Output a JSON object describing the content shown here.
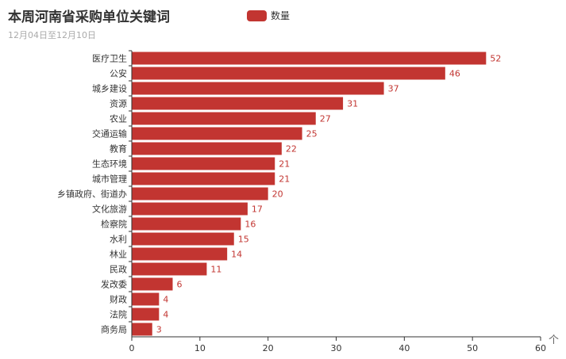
{
  "header": {
    "title": "本周河南省采购单位关键词",
    "subtitle": "12月04日至12月10日"
  },
  "legend": {
    "label": "数量",
    "color": "#c23531"
  },
  "toolbox": {
    "icon": "arrow-up-icon",
    "glyph": "个"
  },
  "chart_data": {
    "type": "bar",
    "orientation": "horizontal",
    "title": "本周河南省采购单位关键词",
    "subtitle": "12月04日至12月10日",
    "categories": [
      "医疗卫生",
      "公安",
      "城乡建设",
      "资源",
      "农业",
      "交通运输",
      "教育",
      "生态环境",
      "城市管理",
      "乡镇政府、街道办",
      "文化旅游",
      "检察院",
      "水利",
      "林业",
      "民政",
      "发改委",
      "财政",
      "法院",
      "商务局"
    ],
    "series": [
      {
        "name": "数量",
        "values": [
          52,
          46,
          37,
          31,
          27,
          25,
          22,
          21,
          21,
          20,
          17,
          16,
          15,
          14,
          11,
          6,
          4,
          4,
          3
        ],
        "color": "#c23531"
      }
    ],
    "xlim": [
      0,
      60
    ],
    "xticks": [
      0,
      10,
      20,
      30,
      40,
      50,
      60
    ],
    "grid": false,
    "legend_position": "top-center",
    "data_labels": true
  }
}
